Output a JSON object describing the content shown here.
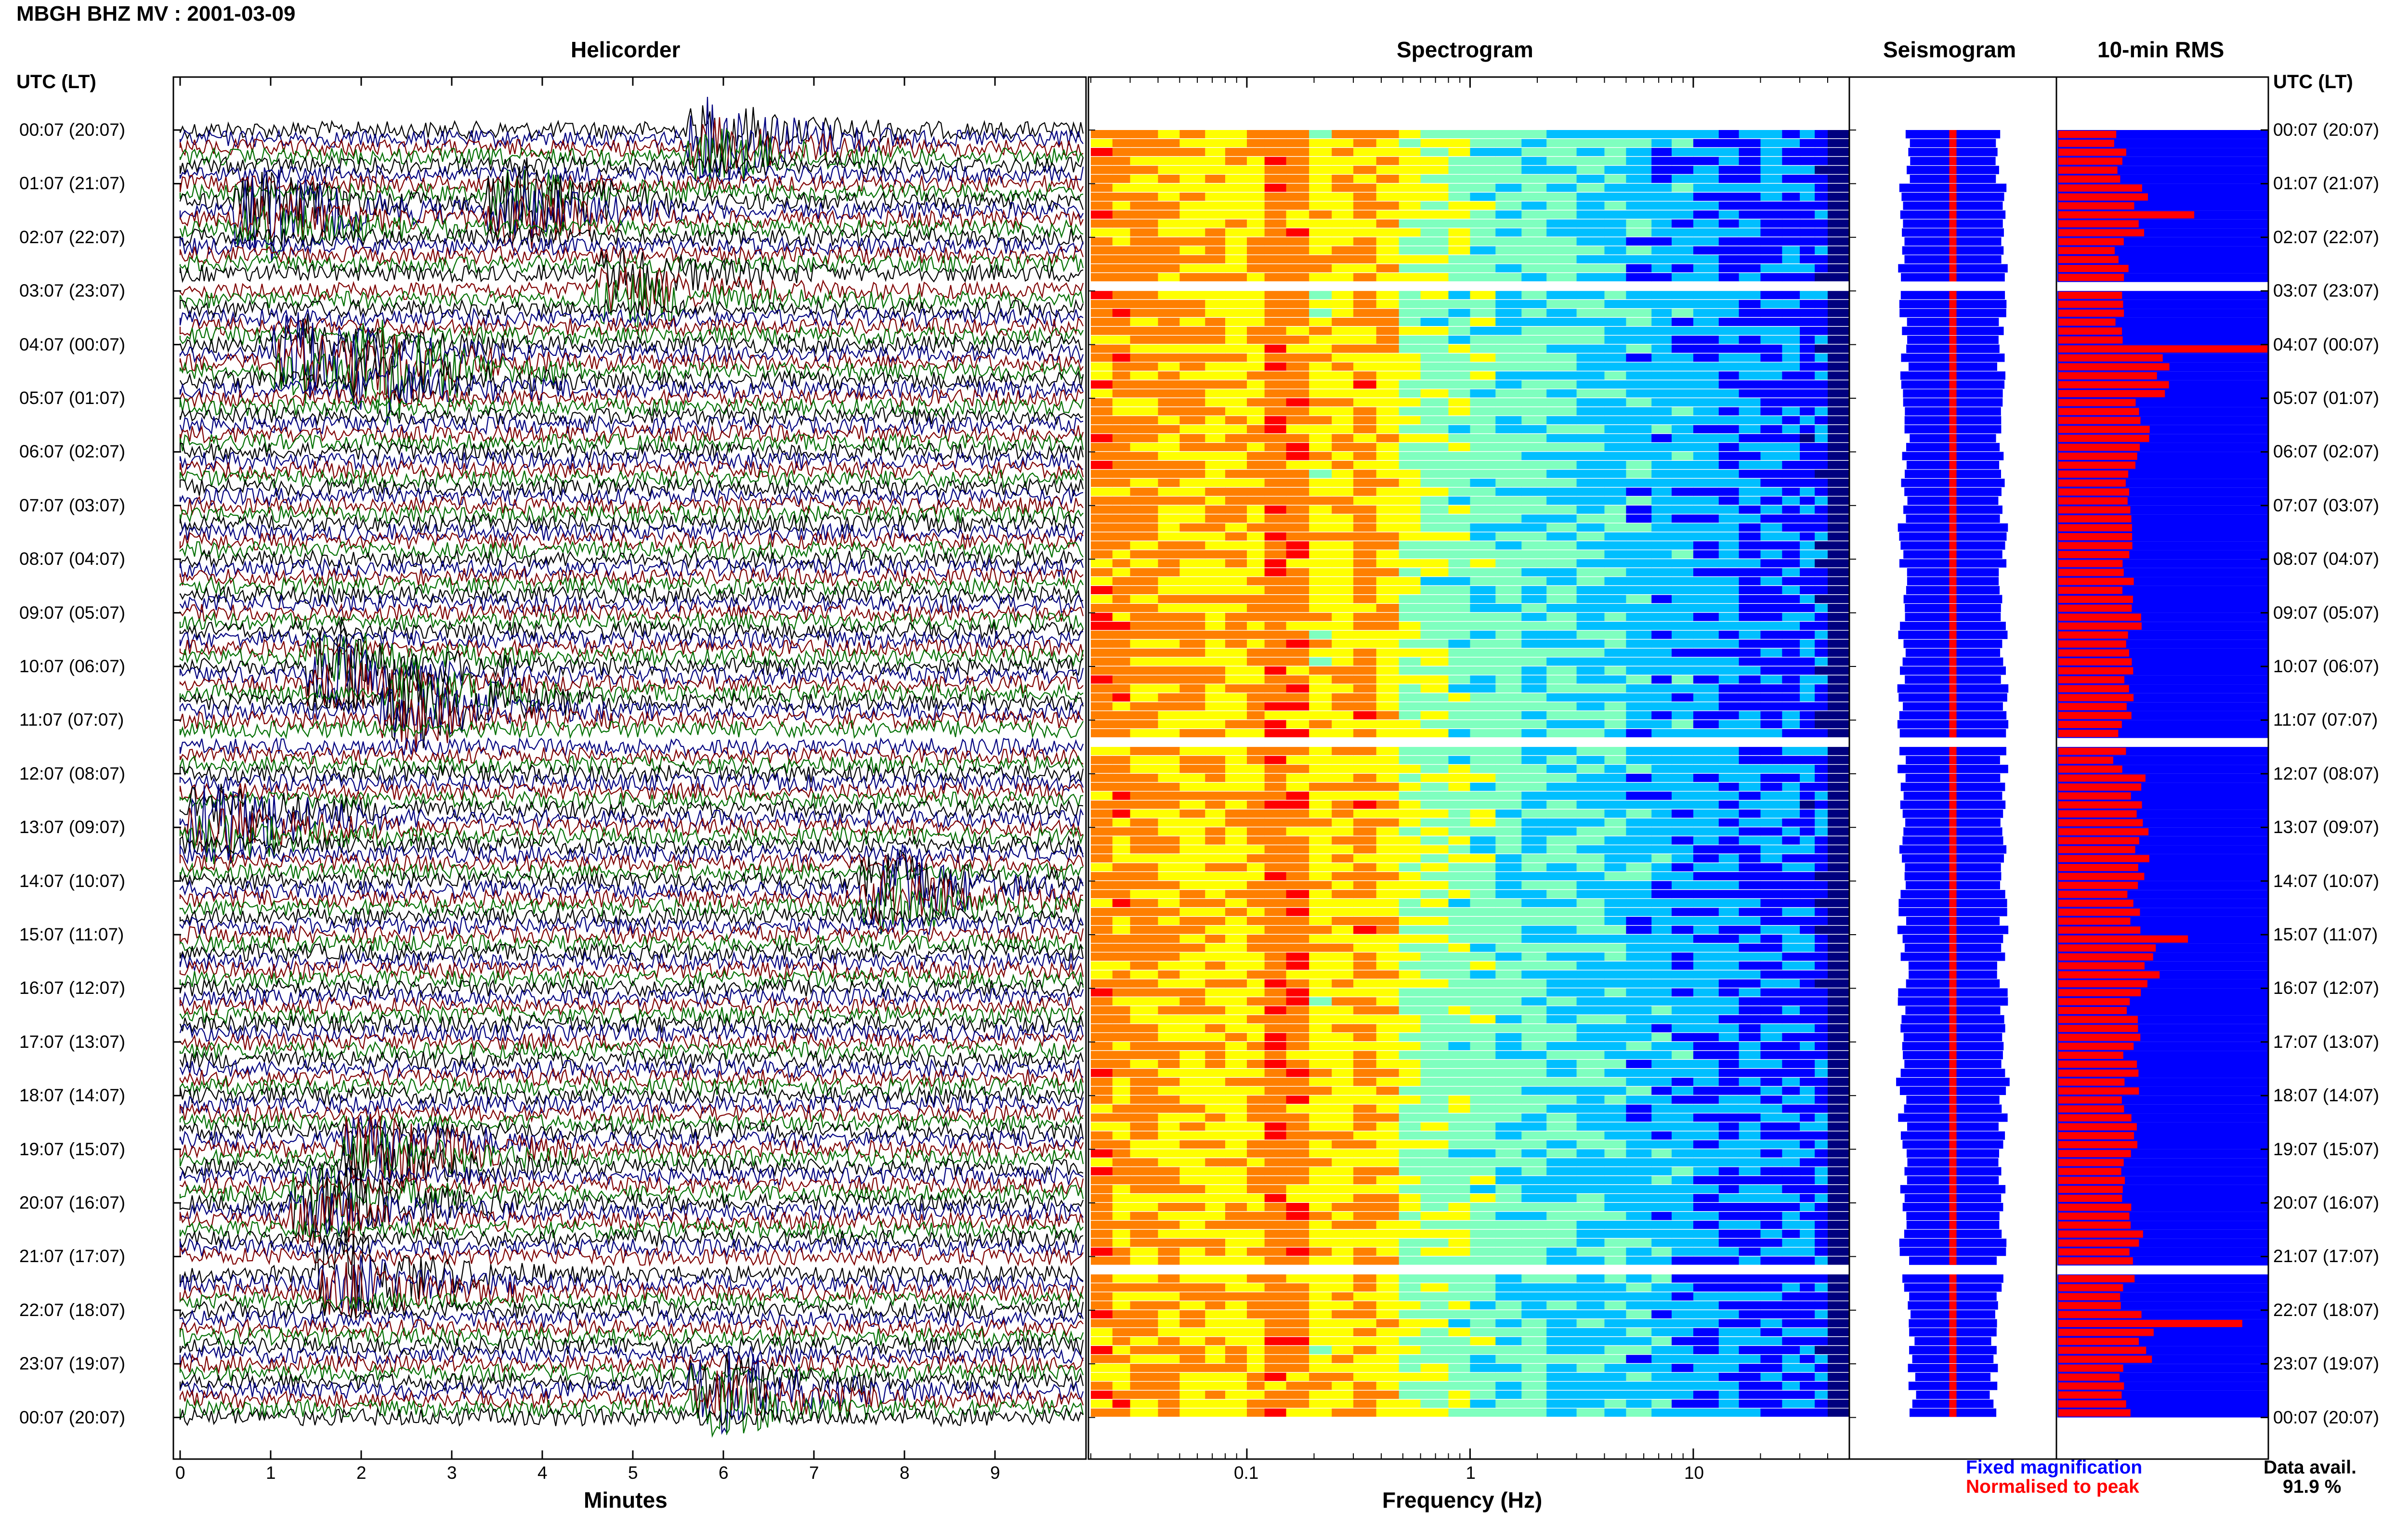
{
  "header": {
    "title": "MBGH BHZ MV : 2001-03-09"
  },
  "panels": {
    "helicorder": "Helicorder",
    "spectrogram": "Spectrogram",
    "seismogram": "Seismogram",
    "rms": "10-min RMS"
  },
  "time_axis": {
    "left_title": "UTC (LT)",
    "right_title": "UTC (LT)",
    "labels": [
      "00:07 (20:07)",
      "01:07 (21:07)",
      "02:07 (22:07)",
      "03:07 (23:07)",
      "04:07 (00:07)",
      "05:07 (01:07)",
      "06:07 (02:07)",
      "07:07 (03:07)",
      "08:07 (04:07)",
      "09:07 (05:07)",
      "10:07 (06:07)",
      "11:07 (07:07)",
      "12:07 (08:07)",
      "13:07 (09:07)",
      "14:07 (10:07)",
      "15:07 (11:07)",
      "16:07 (12:07)",
      "17:07 (13:07)",
      "18:07 (14:07)",
      "19:07 (15:07)",
      "20:07 (16:07)",
      "21:07 (17:07)",
      "22:07 (18:07)",
      "23:07 (19:07)",
      "00:07 (20:07)"
    ]
  },
  "x_axes": {
    "minutes_label": "Minutes",
    "minutes_ticks": [
      "0",
      "1",
      "2",
      "3",
      "4",
      "5",
      "6",
      "7",
      "8",
      "9"
    ],
    "frequency_label": "Frequency (Hz)",
    "frequency_ticks": [
      "0.1",
      "1",
      "10"
    ]
  },
  "legend": {
    "fixed": "Fixed magnification",
    "normalised": "Normalised to peak",
    "avail_label": "Data avail.",
    "avail_value": "91.9 %"
  },
  "colors": {
    "helicorder_traces": [
      "#000000",
      "#00007f",
      "#7f0000",
      "#006f00"
    ],
    "fixed": "#0000ff",
    "normalised": "#ff0000",
    "spectrogram_scale": [
      "#00007f",
      "#0000ff",
      "#00bfff",
      "#7fffbf",
      "#ffff00",
      "#ff7f00",
      "#ff0000"
    ]
  },
  "chart_data": [
    {
      "type": "line",
      "title": "Helicorder",
      "xlabel": "Minutes",
      "xlim": [
        0,
        10
      ],
      "ylabel": "UTC (LT)",
      "description_rows": "one trace per 10-minute interval, 24 h from 00:07 to 00:07",
      "data_gaps_utc": [
        "02:57",
        "11:27",
        "21:17"
      ],
      "events": [
        {
          "utc": "00:17",
          "minute": 6.0
        },
        {
          "utc": "01:27",
          "minute": 3.8
        },
        {
          "utc": "01:37",
          "minute": 1.0
        },
        {
          "utc": "02:57",
          "minute": 5.0
        },
        {
          "utc": "04:17",
          "minute": 1.4
        },
        {
          "utc": "04:37",
          "minute": 2.3
        },
        {
          "utc": "10:07",
          "minute": 1.8
        },
        {
          "utc": "10:47",
          "minute": 2.6
        },
        {
          "utc": "12:57",
          "minute": 0.5
        },
        {
          "utc": "14:17",
          "minute": 7.9
        },
        {
          "utc": "19:07",
          "minute": 2.2
        },
        {
          "utc": "20:07",
          "minute": 1.6
        },
        {
          "utc": "21:27",
          "minute": 1.9
        },
        {
          "utc": "23:37",
          "minute": 6.0
        }
      ]
    },
    {
      "type": "heatmap",
      "title": "Spectrogram",
      "xlabel": "Frequency (Hz)",
      "x_scale": "log",
      "xlim": [
        0.02,
        40
      ],
      "peak_bands_hz": [
        0.15,
        0.35
      ],
      "data_gaps_utc": [
        "02:57",
        "11:27",
        "21:17"
      ]
    },
    {
      "type": "bar",
      "title": "Seismogram",
      "series": [
        {
          "name": "Fixed magnification",
          "values": [
            0.55,
            0.6,
            0.62,
            0.6,
            0.58,
            0.56,
            0.57,
            0.6,
            0.58,
            0.6,
            0.62,
            0.6,
            0.6,
            0.62,
            0.6,
            0.58,
            0.6,
            0.62,
            0.6,
            0.6,
            0.58,
            0.55,
            0.5,
            0.48
          ]
        },
        {
          "name": "Normalised to peak",
          "values": [
            0.05,
            0.05,
            0.05,
            0.05,
            0.05,
            0.05,
            0.05,
            0.05,
            0.05,
            0.05,
            0.05,
            0.05,
            0.05,
            0.05,
            0.05,
            0.05,
            0.05,
            0.05,
            0.05,
            0.05,
            0.05,
            0.05,
            0.05,
            0.05
          ]
        }
      ]
    },
    {
      "type": "bar",
      "title": "10-min RMS",
      "categories": [
        "00:07",
        "01:07",
        "02:07",
        "03:07",
        "04:07",
        "05:07",
        "06:07",
        "07:07",
        "08:07",
        "09:07",
        "10:07",
        "11:07",
        "12:07",
        "13:07",
        "14:07",
        "15:07",
        "16:07",
        "17:07",
        "18:07",
        "19:07",
        "20:07",
        "21:07",
        "22:07",
        "23:07"
      ],
      "values": [
        0.3,
        0.4,
        0.3,
        0.3,
        0.5,
        0.4,
        0.35,
        0.33,
        0.34,
        0.36,
        0.35,
        0.3,
        0.38,
        0.4,
        0.36,
        0.45,
        0.36,
        0.35,
        0.34,
        0.34,
        0.37,
        0.33,
        0.42,
        0.33
      ],
      "peaks": [
        {
          "utc": "01:37",
          "value": 0.65
        },
        {
          "utc": "04:07",
          "value": 1.0
        },
        {
          "utc": "15:07",
          "value": 0.62
        },
        {
          "utc": "22:17",
          "value": 0.88
        }
      ]
    }
  ]
}
